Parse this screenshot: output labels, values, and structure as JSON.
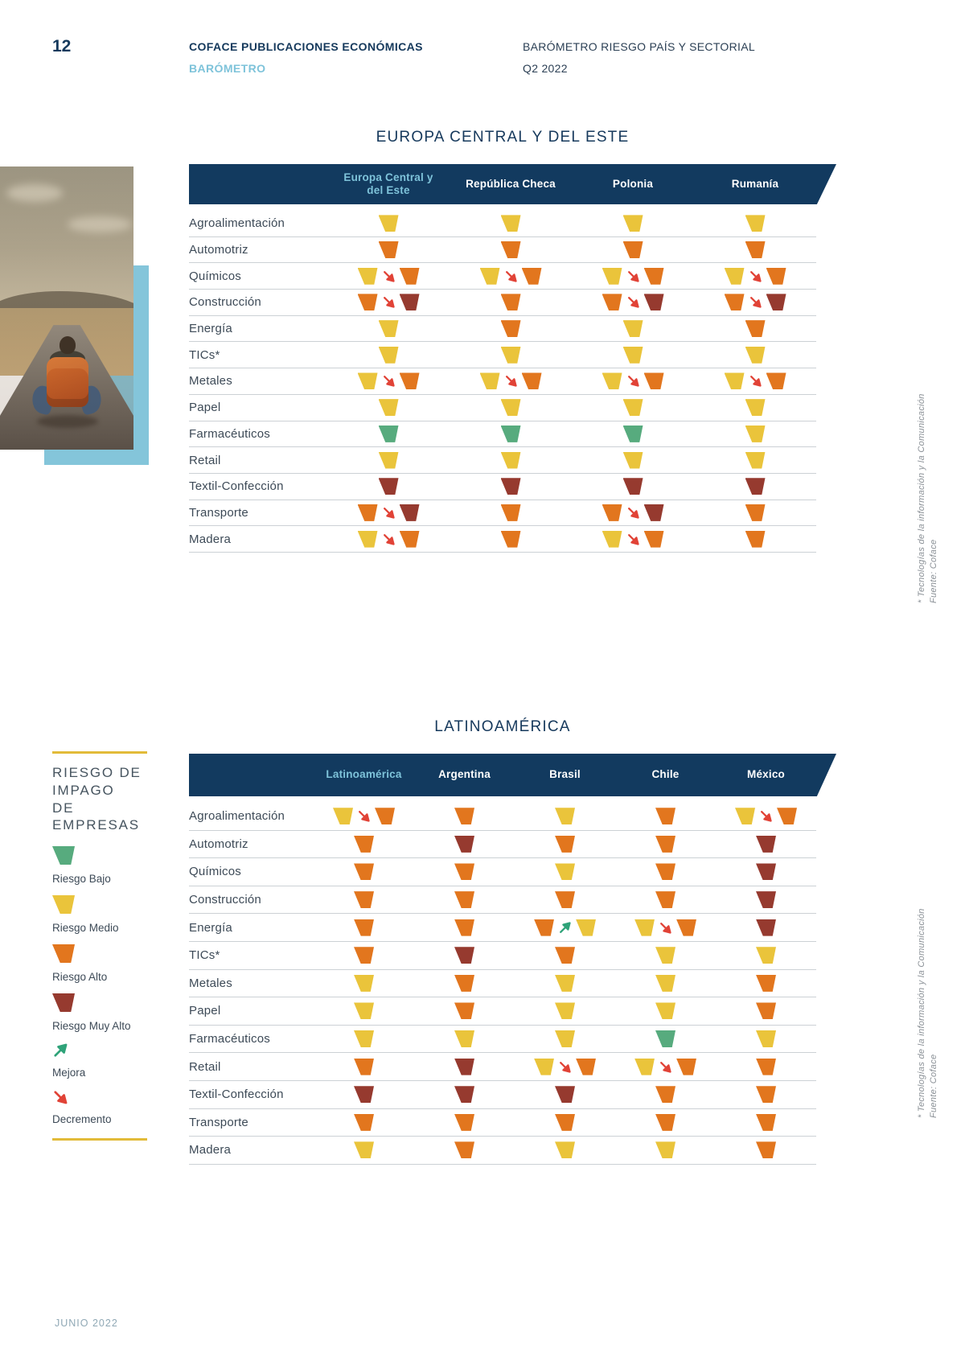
{
  "page": {
    "number": "12",
    "header": {
      "publication": "COFACE PUBLICACIONES ECONÓMICAS",
      "publication_sub": "BARÓMETRO",
      "report_title": "BARÓMETRO RIESGO PAÍS Y SECTORIAL",
      "report_period": "Q2 2022"
    },
    "footer": "JUNIO 2022"
  },
  "colors": {
    "low": "#57ab7e",
    "medium": "#eac43b",
    "high": "#e2761e",
    "very-high": "#963a2f",
    "up": "#2fa379",
    "down": "#e14337",
    "navy": "#123a5f",
    "accent_blue": "#7ec3da",
    "legend_rule": "#e2bb39"
  },
  "legend": {
    "title": "RIESGO DE\nIMPAGO\nDE EMPRESAS",
    "items": [
      {
        "type": "shape",
        "level": "low",
        "label": "Riesgo Bajo"
      },
      {
        "type": "shape",
        "level": "medium",
        "label": "Riesgo Medio"
      },
      {
        "type": "shape",
        "level": "high",
        "label": "Riesgo Alto"
      },
      {
        "type": "shape",
        "level": "very-high",
        "label": "Riesgo Muy Alto"
      },
      {
        "type": "arrow",
        "dir": "up",
        "label": "Mejora"
      },
      {
        "type": "arrow",
        "dir": "down",
        "label": "Decremento"
      }
    ]
  },
  "sidenote": {
    "asterisk": "* Tecnologías de la información y la Comunicación",
    "source": "Fuente: Coface"
  },
  "tables": [
    {
      "title": "EUROPA CENTRAL Y DEL ESTE",
      "columns": [
        "Europa Central y\ndel Este",
        "República Checa",
        "Polonia",
        "Rumanía"
      ],
      "rows": [
        {
          "sector": "Agroalimentación",
          "cells": [
            [
              "medium"
            ],
            [
              "medium"
            ],
            [
              "medium"
            ],
            [
              "medium"
            ]
          ]
        },
        {
          "sector": "Automotriz",
          "cells": [
            [
              "high"
            ],
            [
              "high"
            ],
            [
              "high"
            ],
            [
              "high"
            ]
          ]
        },
        {
          "sector": "Químicos",
          "cells": [
            [
              "medium",
              "down",
              "high"
            ],
            [
              "medium",
              "down",
              "high"
            ],
            [
              "medium",
              "down",
              "high"
            ],
            [
              "medium",
              "down",
              "high"
            ]
          ]
        },
        {
          "sector": "Construcción",
          "cells": [
            [
              "high",
              "down",
              "very-high"
            ],
            [
              "high"
            ],
            [
              "high",
              "down",
              "very-high"
            ],
            [
              "high",
              "down",
              "very-high"
            ]
          ]
        },
        {
          "sector": "Energía",
          "cells": [
            [
              "medium"
            ],
            [
              "high"
            ],
            [
              "medium"
            ],
            [
              "high"
            ]
          ]
        },
        {
          "sector": "TICs*",
          "cells": [
            [
              "medium"
            ],
            [
              "medium"
            ],
            [
              "medium"
            ],
            [
              "medium"
            ]
          ]
        },
        {
          "sector": "Metales",
          "cells": [
            [
              "medium",
              "down",
              "high"
            ],
            [
              "medium",
              "down",
              "high"
            ],
            [
              "medium",
              "down",
              "high"
            ],
            [
              "medium",
              "down",
              "high"
            ]
          ]
        },
        {
          "sector": "Papel",
          "cells": [
            [
              "medium"
            ],
            [
              "medium"
            ],
            [
              "medium"
            ],
            [
              "medium"
            ]
          ]
        },
        {
          "sector": "Farmacéuticos",
          "cells": [
            [
              "low"
            ],
            [
              "low"
            ],
            [
              "low"
            ],
            [
              "medium"
            ]
          ]
        },
        {
          "sector": "Retail",
          "cells": [
            [
              "medium"
            ],
            [
              "medium"
            ],
            [
              "medium"
            ],
            [
              "medium"
            ]
          ]
        },
        {
          "sector": "Textil-Confección",
          "cells": [
            [
              "very-high"
            ],
            [
              "very-high"
            ],
            [
              "very-high"
            ],
            [
              "very-high"
            ]
          ]
        },
        {
          "sector": "Transporte",
          "cells": [
            [
              "high",
              "down",
              "very-high"
            ],
            [
              "high"
            ],
            [
              "high",
              "down",
              "very-high"
            ],
            [
              "high"
            ]
          ]
        },
        {
          "sector": "Madera",
          "cells": [
            [
              "medium",
              "down",
              "high"
            ],
            [
              "high"
            ],
            [
              "medium",
              "down",
              "high"
            ],
            [
              "high"
            ]
          ]
        }
      ]
    },
    {
      "title": "LATINOAMÉRICA",
      "columns": [
        "Latinoamérica",
        "Argentina",
        "Brasil",
        "Chile",
        "México"
      ],
      "rows": [
        {
          "sector": "Agroalimentación",
          "cells": [
            [
              "medium",
              "down",
              "high"
            ],
            [
              "high"
            ],
            [
              "medium"
            ],
            [
              "high"
            ],
            [
              "medium",
              "down",
              "high"
            ]
          ]
        },
        {
          "sector": "Automotriz",
          "cells": [
            [
              "high"
            ],
            [
              "very-high"
            ],
            [
              "high"
            ],
            [
              "high"
            ],
            [
              "very-high"
            ]
          ]
        },
        {
          "sector": "Químicos",
          "cells": [
            [
              "high"
            ],
            [
              "high"
            ],
            [
              "medium"
            ],
            [
              "high"
            ],
            [
              "very-high"
            ]
          ]
        },
        {
          "sector": "Construcción",
          "cells": [
            [
              "high"
            ],
            [
              "high"
            ],
            [
              "high"
            ],
            [
              "high"
            ],
            [
              "very-high"
            ]
          ]
        },
        {
          "sector": "Energía",
          "cells": [
            [
              "high"
            ],
            [
              "high"
            ],
            [
              "high",
              "up",
              "medium"
            ],
            [
              "medium",
              "down",
              "high"
            ],
            [
              "very-high"
            ]
          ]
        },
        {
          "sector": "TICs*",
          "cells": [
            [
              "high"
            ],
            [
              "very-high"
            ],
            [
              "high"
            ],
            [
              "medium"
            ],
            [
              "medium"
            ]
          ]
        },
        {
          "sector": "Metales",
          "cells": [
            [
              "medium"
            ],
            [
              "high"
            ],
            [
              "medium"
            ],
            [
              "medium"
            ],
            [
              "high"
            ]
          ]
        },
        {
          "sector": "Papel",
          "cells": [
            [
              "medium"
            ],
            [
              "high"
            ],
            [
              "medium"
            ],
            [
              "medium"
            ],
            [
              "high"
            ]
          ]
        },
        {
          "sector": "Farmacéuticos",
          "cells": [
            [
              "medium"
            ],
            [
              "medium"
            ],
            [
              "medium"
            ],
            [
              "low"
            ],
            [
              "medium"
            ]
          ]
        },
        {
          "sector": "Retail",
          "cells": [
            [
              "high"
            ],
            [
              "very-high"
            ],
            [
              "medium",
              "down",
              "high"
            ],
            [
              "medium",
              "down",
              "high"
            ],
            [
              "high"
            ]
          ]
        },
        {
          "sector": "Textil-Confección",
          "cells": [
            [
              "very-high"
            ],
            [
              "very-high"
            ],
            [
              "very-high"
            ],
            [
              "high"
            ],
            [
              "high"
            ]
          ]
        },
        {
          "sector": "Transporte",
          "cells": [
            [
              "high"
            ],
            [
              "high"
            ],
            [
              "high"
            ],
            [
              "high"
            ],
            [
              "high"
            ]
          ]
        },
        {
          "sector": "Madera",
          "cells": [
            [
              "medium"
            ],
            [
              "high"
            ],
            [
              "medium"
            ],
            [
              "medium"
            ],
            [
              "high"
            ]
          ]
        }
      ]
    }
  ]
}
